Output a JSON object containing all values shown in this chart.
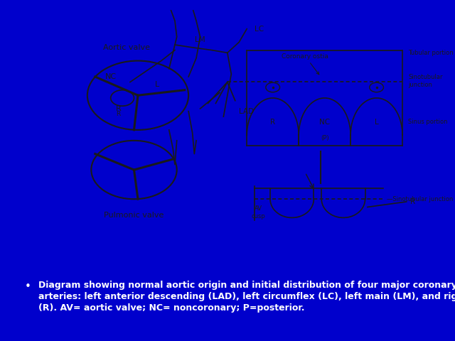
{
  "background_color": "#0000CC",
  "image_box_color": "#FFFFFF",
  "bullet_text_line1": "Diagram showing normal aortic origin and initial distribution of four major coronary",
  "bullet_text_line2": "arteries: left anterior descending (LAD), left circumflex (LC), left main (LM), and right",
  "bullet_text_line3": "(R). AV= aortic valve; NC= noncoronary; P=posterior.",
  "text_color": "#FFFFFF",
  "diagram_color": "#1a1a1a",
  "font_size_body": 9.0,
  "font_size_label": 7.5
}
